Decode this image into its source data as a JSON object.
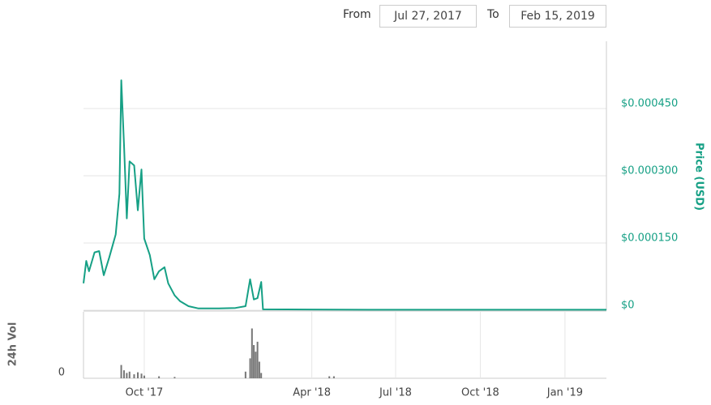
{
  "range_picker": {
    "from_label": "From",
    "from": "Jul 27, 2017",
    "to_label": "To",
    "to": "Feb 15, 2019"
  },
  "chart_data": {
    "type": "line",
    "y_label": "Price (USD)",
    "volume_label": "24h Vol",
    "xlim": [
      "2017-07-27",
      "2019-02-15"
    ],
    "xticks": [
      {
        "value": "2017-10-01",
        "label": "Oct '17"
      },
      {
        "value": "2018-04-01",
        "label": "Apr '18"
      },
      {
        "value": "2018-07-01",
        "label": "Jul '18"
      },
      {
        "value": "2018-10-01",
        "label": "Oct '18"
      },
      {
        "value": "2019-01-01",
        "label": "Jan '19"
      }
    ],
    "ylim": [
      0,
      0.0006
    ],
    "yticks": [
      {
        "value": 0,
        "label": "$0"
      },
      {
        "value": 0.00015,
        "label": "$0.000150"
      },
      {
        "value": 0.0003,
        "label": "$0.000300"
      },
      {
        "value": 0.00045,
        "label": "$0.000450"
      }
    ],
    "grid": true,
    "series": [
      {
        "name": "Price",
        "color": "#16a085",
        "x": [
          "2017-07-27",
          "2017-07-30",
          "2017-08-02",
          "2017-08-08",
          "2017-08-13",
          "2017-08-18",
          "2017-08-24",
          "2017-08-31",
          "2017-09-04",
          "2017-09-06",
          "2017-09-09",
          "2017-09-12",
          "2017-09-15",
          "2017-09-20",
          "2017-09-24",
          "2017-09-28",
          "2017-10-01",
          "2017-10-07",
          "2017-10-12",
          "2017-10-17",
          "2017-10-23",
          "2017-10-27",
          "2017-11-03",
          "2017-11-09",
          "2017-11-18",
          "2017-11-29",
          "2017-12-21",
          "2018-01-08",
          "2018-01-19",
          "2018-01-24",
          "2018-01-28",
          "2018-02-01",
          "2018-02-05",
          "2018-02-07",
          "2018-06-01",
          "2018-10-01",
          "2019-02-15"
        ],
        "values": [
          6e-05,
          0.00011,
          8.7e-05,
          0.000129,
          0.000132,
          7.8e-05,
          0.000118,
          0.000169,
          0.00026,
          0.000513,
          0.000368,
          0.000205,
          0.000332,
          0.000323,
          0.000223,
          0.000314,
          0.00016,
          0.000123,
          6.9e-05,
          8.7e-05,
          9.6e-05,
          6e-05,
          3.3e-05,
          2e-05,
          9e-06,
          4e-06,
          4e-06,
          5e-06,
          9e-06,
          6.9e-05,
          2.4e-05,
          2.7e-05,
          6.3e-05,
          2e-06,
          1e-06,
          1e-06,
          1e-06
        ]
      }
    ],
    "volume": {
      "color": "#777",
      "ylim": [
        0,
        100
      ],
      "yticks": [
        0
      ],
      "x": [
        "2017-09-06",
        "2017-09-09",
        "2017-09-12",
        "2017-09-15",
        "2017-09-20",
        "2017-09-24",
        "2017-09-28",
        "2017-10-01",
        "2017-10-17",
        "2017-11-03",
        "2018-01-19",
        "2018-01-24",
        "2018-01-26",
        "2018-01-28",
        "2018-01-30",
        "2018-02-01",
        "2018-02-03",
        "2018-02-05",
        "2018-04-20",
        "2018-04-25"
      ],
      "values": [
        20,
        12,
        8,
        10,
        6,
        9,
        7,
        4,
        3,
        2,
        10,
        30,
        75,
        50,
        40,
        55,
        25,
        8,
        3,
        3
      ]
    }
  }
}
